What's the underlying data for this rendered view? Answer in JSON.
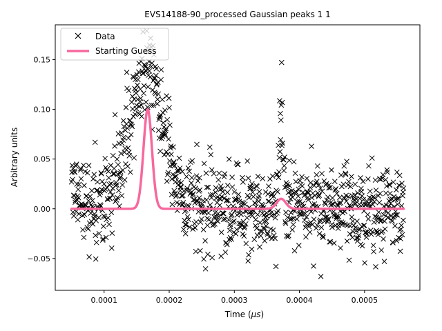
{
  "chart_data": {
    "type": "scatter",
    "title": "EVS14188-90_processed Gaussian peaks 1 1",
    "xlabel": "Time (",
    "xlabel_unit": "μs",
    "xlabel_close": ")",
    "ylabel": "Arbitrary units",
    "xlim": [
      2.5e-05,
      0.000585
    ],
    "ylim": [
      -0.082,
      0.185
    ],
    "x_ticks": [
      0.0001,
      0.0002,
      0.0003,
      0.0004,
      0.0005
    ],
    "x_tick_labels": [
      "0.0001",
      "0.0002",
      "0.0003",
      "0.0004",
      "0.0005"
    ],
    "y_ticks": [
      -0.05,
      0.0,
      0.05,
      0.1,
      0.15
    ],
    "y_tick_labels": [
      "−0.05",
      "0.00",
      "0.05",
      "0.10",
      "0.15"
    ],
    "grid": false,
    "legend_position": "top-left",
    "series": [
      {
        "name": "Data",
        "kind": "marker",
        "marker": "x",
        "color": "#000000",
        "x_range": [
          5e-05,
          0.00056
        ],
        "n_points": 1000,
        "trend_description_values": {
          "baseline": 0.0,
          "noise_sd": 0.022,
          "peak1_center": 0.000165,
          "peak1_amplitude": 0.14,
          "peak1_sigma": 2.6e-05,
          "peak2_center": 0.000372,
          "peak2_amplitude": 0.11,
          "peak2_sigma": 2.5e-06,
          "offset_x": 9e-05,
          "offset_value": 0.02
        }
      },
      {
        "name": "Starting Guess",
        "kind": "line",
        "color": "#f7689d",
        "x_range": [
          5e-05,
          0.00056
        ],
        "gaussians": [
          {
            "center": 0.000167,
            "amplitude": 0.1,
            "sigma": 6.5e-06
          },
          {
            "center": 0.000372,
            "amplitude": 0.01,
            "sigma": 7e-06
          }
        ],
        "baseline": 0.0
      }
    ]
  }
}
